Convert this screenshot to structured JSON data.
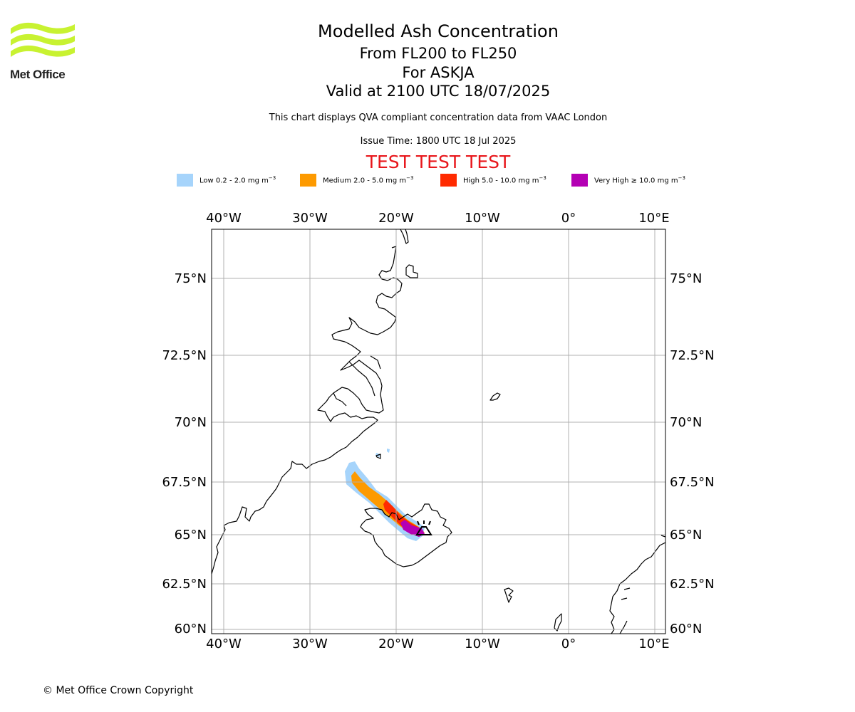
{
  "logo": {
    "text": "Met Office",
    "color": "#c8f231"
  },
  "title": {
    "line1": "Modelled Ash Concentration",
    "line2": "From FL200 to FL250",
    "line3": "For ASKJA",
    "line4": "Valid at 2100 UTC 18/07/2025"
  },
  "info_text": "This chart displays QVA compliant concentration data from VAAC London",
  "issue_time": "Issue Time: 1800 UTC 18 Jul 2025",
  "test_banner": "TEST TEST TEST",
  "legend": [
    {
      "label": "Low 0.2 - 2.0 mg m",
      "exp": "−3",
      "color": "#a6d4fb"
    },
    {
      "label": "Medium 2.0 - 5.0 mg m",
      "exp": "−3",
      "color": "#fd9a00"
    },
    {
      "label": "High 5.0 - 10.0 mg m",
      "exp": "−3",
      "color": "#ff2a00"
    },
    {
      "label": "Very High  ≥  10.0 mg m",
      "exp": "−3",
      "color": "#b400b4"
    }
  ],
  "map": {
    "lon_ticks": [
      "40°W",
      "30°W",
      "20°W",
      "10°W",
      "0°",
      "10°E"
    ],
    "lat_ticks": [
      "75°N",
      "72.5°N",
      "70°N",
      "67.5°N",
      "65°N",
      "62.5°N",
      "60°N"
    ],
    "volcano": "ASKJA",
    "volcano_icon": "volcano-icon"
  },
  "copyright": "© Met Office Crown Copyright"
}
